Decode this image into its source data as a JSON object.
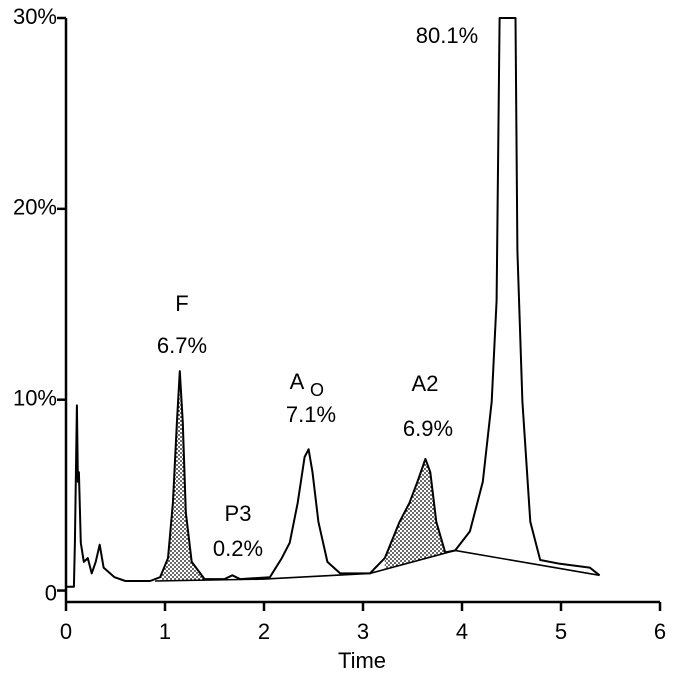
{
  "chart_data": {
    "type": "line",
    "xlabel": "Time",
    "xlim": [
      0,
      6
    ],
    "xticks": [
      0,
      1,
      2,
      3,
      4,
      5,
      6
    ],
    "ylim": [
      -0.6,
      30
    ],
    "yticks": [
      0,
      {
        "value": 10,
        "label": "10%"
      },
      {
        "value": 20,
        "label": "20%"
      },
      {
        "value": 30,
        "label": "30%"
      }
    ],
    "grid": false,
    "color": "#000000",
    "trace": {
      "x": [
        0.0,
        0.08,
        0.09,
        0.11,
        0.12,
        0.13,
        0.15,
        0.18,
        0.22,
        0.26,
        0.3,
        0.34,
        0.38,
        0.49,
        0.6,
        0.85,
        0.95,
        1.03,
        1.08,
        1.12,
        1.15,
        1.18,
        1.21,
        1.27,
        1.4,
        1.6,
        1.68,
        1.76,
        2.06,
        2.18,
        2.26,
        2.34,
        2.41,
        2.45,
        2.49,
        2.55,
        2.64,
        2.77,
        3.07,
        3.22,
        3.37,
        3.47,
        3.55,
        3.63,
        3.68,
        3.74,
        3.83,
        3.93,
        4.08,
        4.21,
        4.3,
        4.35,
        4.38,
        4.54,
        4.56,
        4.61,
        4.69,
        4.79,
        4.99,
        5.29,
        5.39
      ],
      "y": [
        0.2,
        0.2,
        2.5,
        9.7,
        5.7,
        6.2,
        2.5,
        1.5,
        1.7,
        0.9,
        1.5,
        2.4,
        1.2,
        0.7,
        0.5,
        0.5,
        0.7,
        1.7,
        4.6,
        8.8,
        11.5,
        8.8,
        4.1,
        1.5,
        0.6,
        0.6,
        0.8,
        0.6,
        0.7,
        1.7,
        2.5,
        4.6,
        7.0,
        7.4,
        6.2,
        3.6,
        1.5,
        0.9,
        0.9,
        1.7,
        3.6,
        4.6,
        5.7,
        6.9,
        6.2,
        3.6,
        2.0,
        2.1,
        3.1,
        5.7,
        9.9,
        15.2,
        30,
        30,
        17.8,
        9.9,
        3.6,
        1.6,
        1.4,
        1.2,
        0.8
      ]
    },
    "baseline": {
      "x": [
        0.9,
        2.0,
        3.07,
        3.93,
        5.39
      ],
      "y": [
        0.5,
        0.6,
        0.9,
        2.1,
        0.8
      ]
    },
    "shaded": [
      {
        "from": 0.95,
        "to": 1.4
      },
      {
        "from": 3.18,
        "to": 3.93
      }
    ],
    "peaks": [
      {
        "name": "F",
        "label": "6.7%"
      },
      {
        "name": "P3",
        "label": "0.2%"
      },
      {
        "name": "A",
        "subscript": "O",
        "label": "7.1%"
      },
      {
        "name": "A2",
        "label": "6.9%"
      },
      {
        "label": "80.1%"
      }
    ]
  }
}
